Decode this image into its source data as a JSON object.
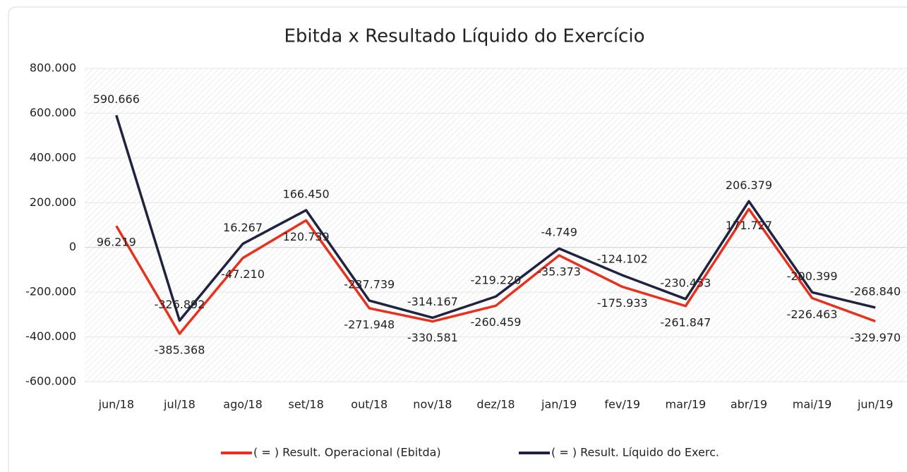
{
  "chart_data": {
    "type": "line",
    "title": "Ebitda x Resultado Líquido do Exercício",
    "categories": [
      "jun/18",
      "jul/18",
      "ago/18",
      "set/18",
      "out/18",
      "nov/18",
      "dez/18",
      "jan/19",
      "fev/19",
      "mar/19",
      "abr/19",
      "mai/19",
      "jun/19"
    ],
    "series": [
      {
        "name": "( = ) Result. Operacional (Ebitda)",
        "color": "#e8301c",
        "values": [
          96219,
          -385368,
          -47210,
          120739,
          -271948,
          -330581,
          -260459,
          -35373,
          -175933,
          -261847,
          171727,
          -226463,
          -329970
        ],
        "value_labels": [
          "96.219",
          "-385.368",
          "-47.210",
          "120.739",
          "-271.948",
          "-330.581",
          "-260.459",
          "-35.373",
          "-175.933",
          "-261.847",
          "171.727",
          "-226.463",
          "-329.970"
        ]
      },
      {
        "name": "( = ) Result. Líquido do Exerc.",
        "color": "#1f2340",
        "values": [
          590666,
          -326892,
          16267,
          166450,
          -237739,
          -314167,
          -219220,
          -4749,
          -124102,
          -230453,
          206379,
          -200399,
          -268840
        ],
        "value_labels": [
          "590.666",
          "-326.892",
          "16.267",
          "166.450",
          "-237.739",
          "-314.167",
          "-219.220",
          "-4.749",
          "-124.102",
          "-230.453",
          "206.379",
          "-200.399",
          "-268.840"
        ]
      }
    ],
    "ylim": [
      -600000,
      800000
    ],
    "yticks": [
      {
        "value": -600000,
        "label": "-600.000"
      },
      {
        "value": -400000,
        "label": "-400.000"
      },
      {
        "value": -200000,
        "label": "-200.000"
      },
      0,
      {
        "value": 200000,
        "label": "200.000"
      },
      {
        "value": 400000,
        "label": "400.000"
      },
      {
        "value": 600000,
        "label": "600.000"
      },
      {
        "value": 800000,
        "label": "800.000"
      }
    ],
    "grid": true,
    "legend": "bottom"
  }
}
